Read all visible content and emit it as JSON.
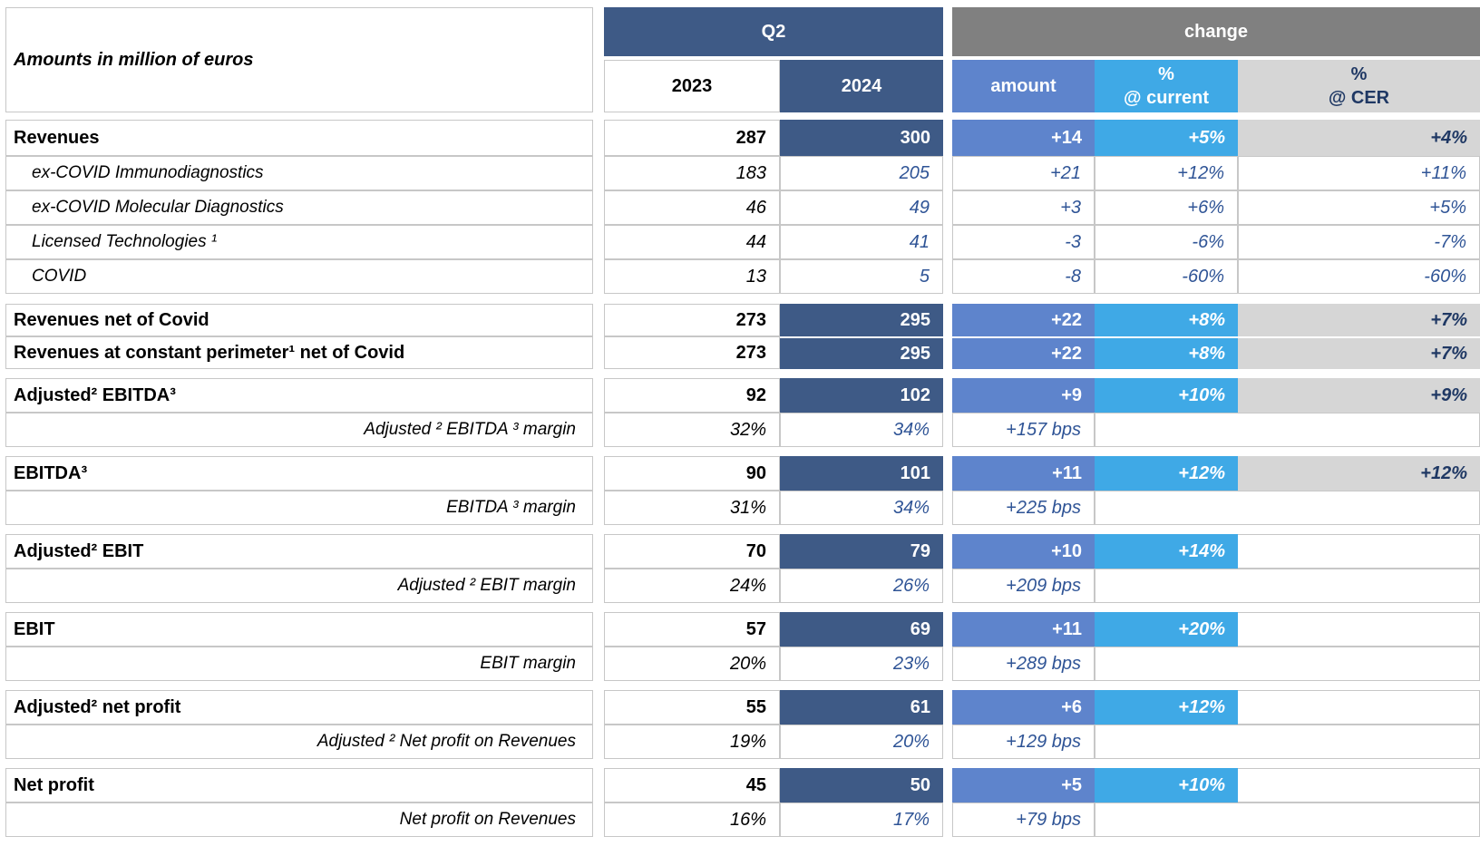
{
  "chart_data": {
    "type": "table",
    "title": "Amounts in million of euros",
    "column_groups": [
      "Q2",
      "change"
    ],
    "columns": [
      "2023",
      "2024",
      "amount",
      "%\n@ current",
      "%\n@ CER"
    ],
    "rows": [
      {
        "label": "Revenues",
        "y2023": "287",
        "y2024": "300",
        "amount": "+14",
        "pct_current": "+5%",
        "pct_cer": "+4%"
      },
      {
        "label": "ex-COVID Immunodiagnostics",
        "y2023": "183",
        "y2024": "205",
        "amount": "+21",
        "pct_current": "+12%",
        "pct_cer": "+11%"
      },
      {
        "label": "ex-COVID Molecular Diagnostics",
        "y2023": "46",
        "y2024": "49",
        "amount": "+3",
        "pct_current": "+6%",
        "pct_cer": "+5%"
      },
      {
        "label": "Licensed Technologies ¹",
        "y2023": "44",
        "y2024": "41",
        "amount": "-3",
        "pct_current": "-6%",
        "pct_cer": "-7%"
      },
      {
        "label": "COVID",
        "y2023": "13",
        "y2024": "5",
        "amount": "-8",
        "pct_current": "-60%",
        "pct_cer": "-60%"
      },
      {
        "label": "Revenues net of Covid",
        "y2023": "273",
        "y2024": "295",
        "amount": "+22",
        "pct_current": "+8%",
        "pct_cer": "+7%"
      },
      {
        "label": "Revenues at constant perimeter¹ net of Covid",
        "y2023": "273",
        "y2024": "295",
        "amount": "+22",
        "pct_current": "+8%",
        "pct_cer": "+7%"
      },
      {
        "label": "Adjusted² EBITDA³",
        "y2023": "92",
        "y2024": "102",
        "amount": "+9",
        "pct_current": "+10%",
        "pct_cer": "+9%"
      },
      {
        "label": "Adjusted ² EBITDA ³ margin",
        "y2023": "32%",
        "y2024": "34%",
        "amount": "+157 bps",
        "pct_current": "",
        "pct_cer": ""
      },
      {
        "label": "EBITDA³",
        "y2023": "90",
        "y2024": "101",
        "amount": "+11",
        "pct_current": "+12%",
        "pct_cer": "+12%"
      },
      {
        "label": "EBITDA ³ margin",
        "y2023": "31%",
        "y2024": "34%",
        "amount": "+225 bps",
        "pct_current": "",
        "pct_cer": ""
      },
      {
        "label": "Adjusted² EBIT",
        "y2023": "70",
        "y2024": "79",
        "amount": "+10",
        "pct_current": "+14%",
        "pct_cer": ""
      },
      {
        "label": "Adjusted ² EBIT margin",
        "y2023": "24%",
        "y2024": "26%",
        "amount": "+209 bps",
        "pct_current": "",
        "pct_cer": ""
      },
      {
        "label": "EBIT",
        "y2023": "57",
        "y2024": "69",
        "amount": "+11",
        "pct_current": "+20%",
        "pct_cer": ""
      },
      {
        "label": "EBIT margin",
        "y2023": "20%",
        "y2024": "23%",
        "amount": "+289 bps",
        "pct_current": "",
        "pct_cer": ""
      },
      {
        "label": "Adjusted² net profit",
        "y2023": "55",
        "y2024": "61",
        "amount": "+6",
        "pct_current": "+12%",
        "pct_cer": ""
      },
      {
        "label": "Adjusted ² Net profit on Revenues",
        "y2023": "19%",
        "y2024": "20%",
        "amount": "+129 bps",
        "pct_current": "",
        "pct_cer": ""
      },
      {
        "label": "Net profit",
        "y2023": "45",
        "y2024": "50",
        "amount": "+5",
        "pct_current": "+10%",
        "pct_cer": ""
      },
      {
        "label": "Net profit on Revenues",
        "y2023": "16%",
        "y2024": "17%",
        "amount": "+79 bps",
        "pct_current": "",
        "pct_cer": ""
      }
    ],
    "legend_position": "none",
    "grid": "light-gray cell borders"
  },
  "colors": {
    "dark_blue": "#3e5a86",
    "medium_blue": "#5e84cc",
    "light_blue": "#3fa9e6",
    "header_gray": "#808080",
    "light_gray_cell": "#d6d6d6",
    "navy_text": "#1f3864",
    "blue_value_text": "#2f5496",
    "border_gray": "#c7c7c7"
  }
}
